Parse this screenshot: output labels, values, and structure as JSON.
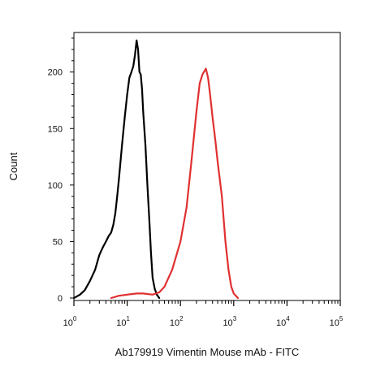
{
  "chart_data": {
    "type": "line",
    "title": "",
    "xlabel": "Ab179919 Vimentin Mouse mAb - FITC",
    "ylabel": "Count",
    "x_scale": "log",
    "xlim": [
      1,
      100000
    ],
    "ylim": [
      0,
      235
    ],
    "x_ticks": [
      {
        "value": 1,
        "base": "10",
        "exp": "0"
      },
      {
        "value": 10,
        "base": "10",
        "exp": "1"
      },
      {
        "value": 100,
        "base": "10",
        "exp": "2"
      },
      {
        "value": 1000,
        "base": "10",
        "exp": "3"
      },
      {
        "value": 10000,
        "base": "10",
        "exp": "4"
      },
      {
        "value": 100000,
        "base": "10",
        "exp": "5"
      }
    ],
    "y_ticks": [
      0,
      50,
      100,
      150,
      200
    ],
    "y_tick_labels": [
      "0",
      "50",
      "100",
      "150",
      "200"
    ],
    "grid": false,
    "series": [
      {
        "color": "#000000",
        "x": [
          1,
          1.3,
          1.6,
          2,
          2.5,
          3,
          3.5,
          4,
          4.5,
          5,
          5.5,
          6,
          6.5,
          7,
          8,
          9,
          10,
          11,
          12,
          13,
          14,
          15,
          16,
          17,
          18,
          19,
          20,
          22,
          24,
          26,
          28,
          30,
          33,
          36,
          40
        ],
        "y": [
          0,
          3,
          7,
          15,
          25,
          38,
          45,
          50,
          55,
          58,
          65,
          75,
          90,
          105,
          135,
          160,
          180,
          195,
          200,
          205,
          215,
          228,
          220,
          200,
          198,
          185,
          165,
          135,
          100,
          70,
          40,
          18,
          8,
          3,
          0
        ]
      },
      {
        "color": "#e03030",
        "x": [
          5,
          7,
          10,
          15,
          20,
          30,
          40,
          50,
          70,
          100,
          130,
          160,
          200,
          230,
          260,
          300,
          330,
          360,
          400,
          450,
          500,
          600,
          700,
          800,
          900,
          1000,
          1200
        ],
        "y": [
          0,
          2,
          3,
          4,
          4,
          3,
          5,
          10,
          25,
          50,
          80,
          120,
          165,
          190,
          198,
          203,
          195,
          180,
          160,
          140,
          120,
          90,
          50,
          25,
          10,
          4,
          0
        ]
      }
    ]
  }
}
